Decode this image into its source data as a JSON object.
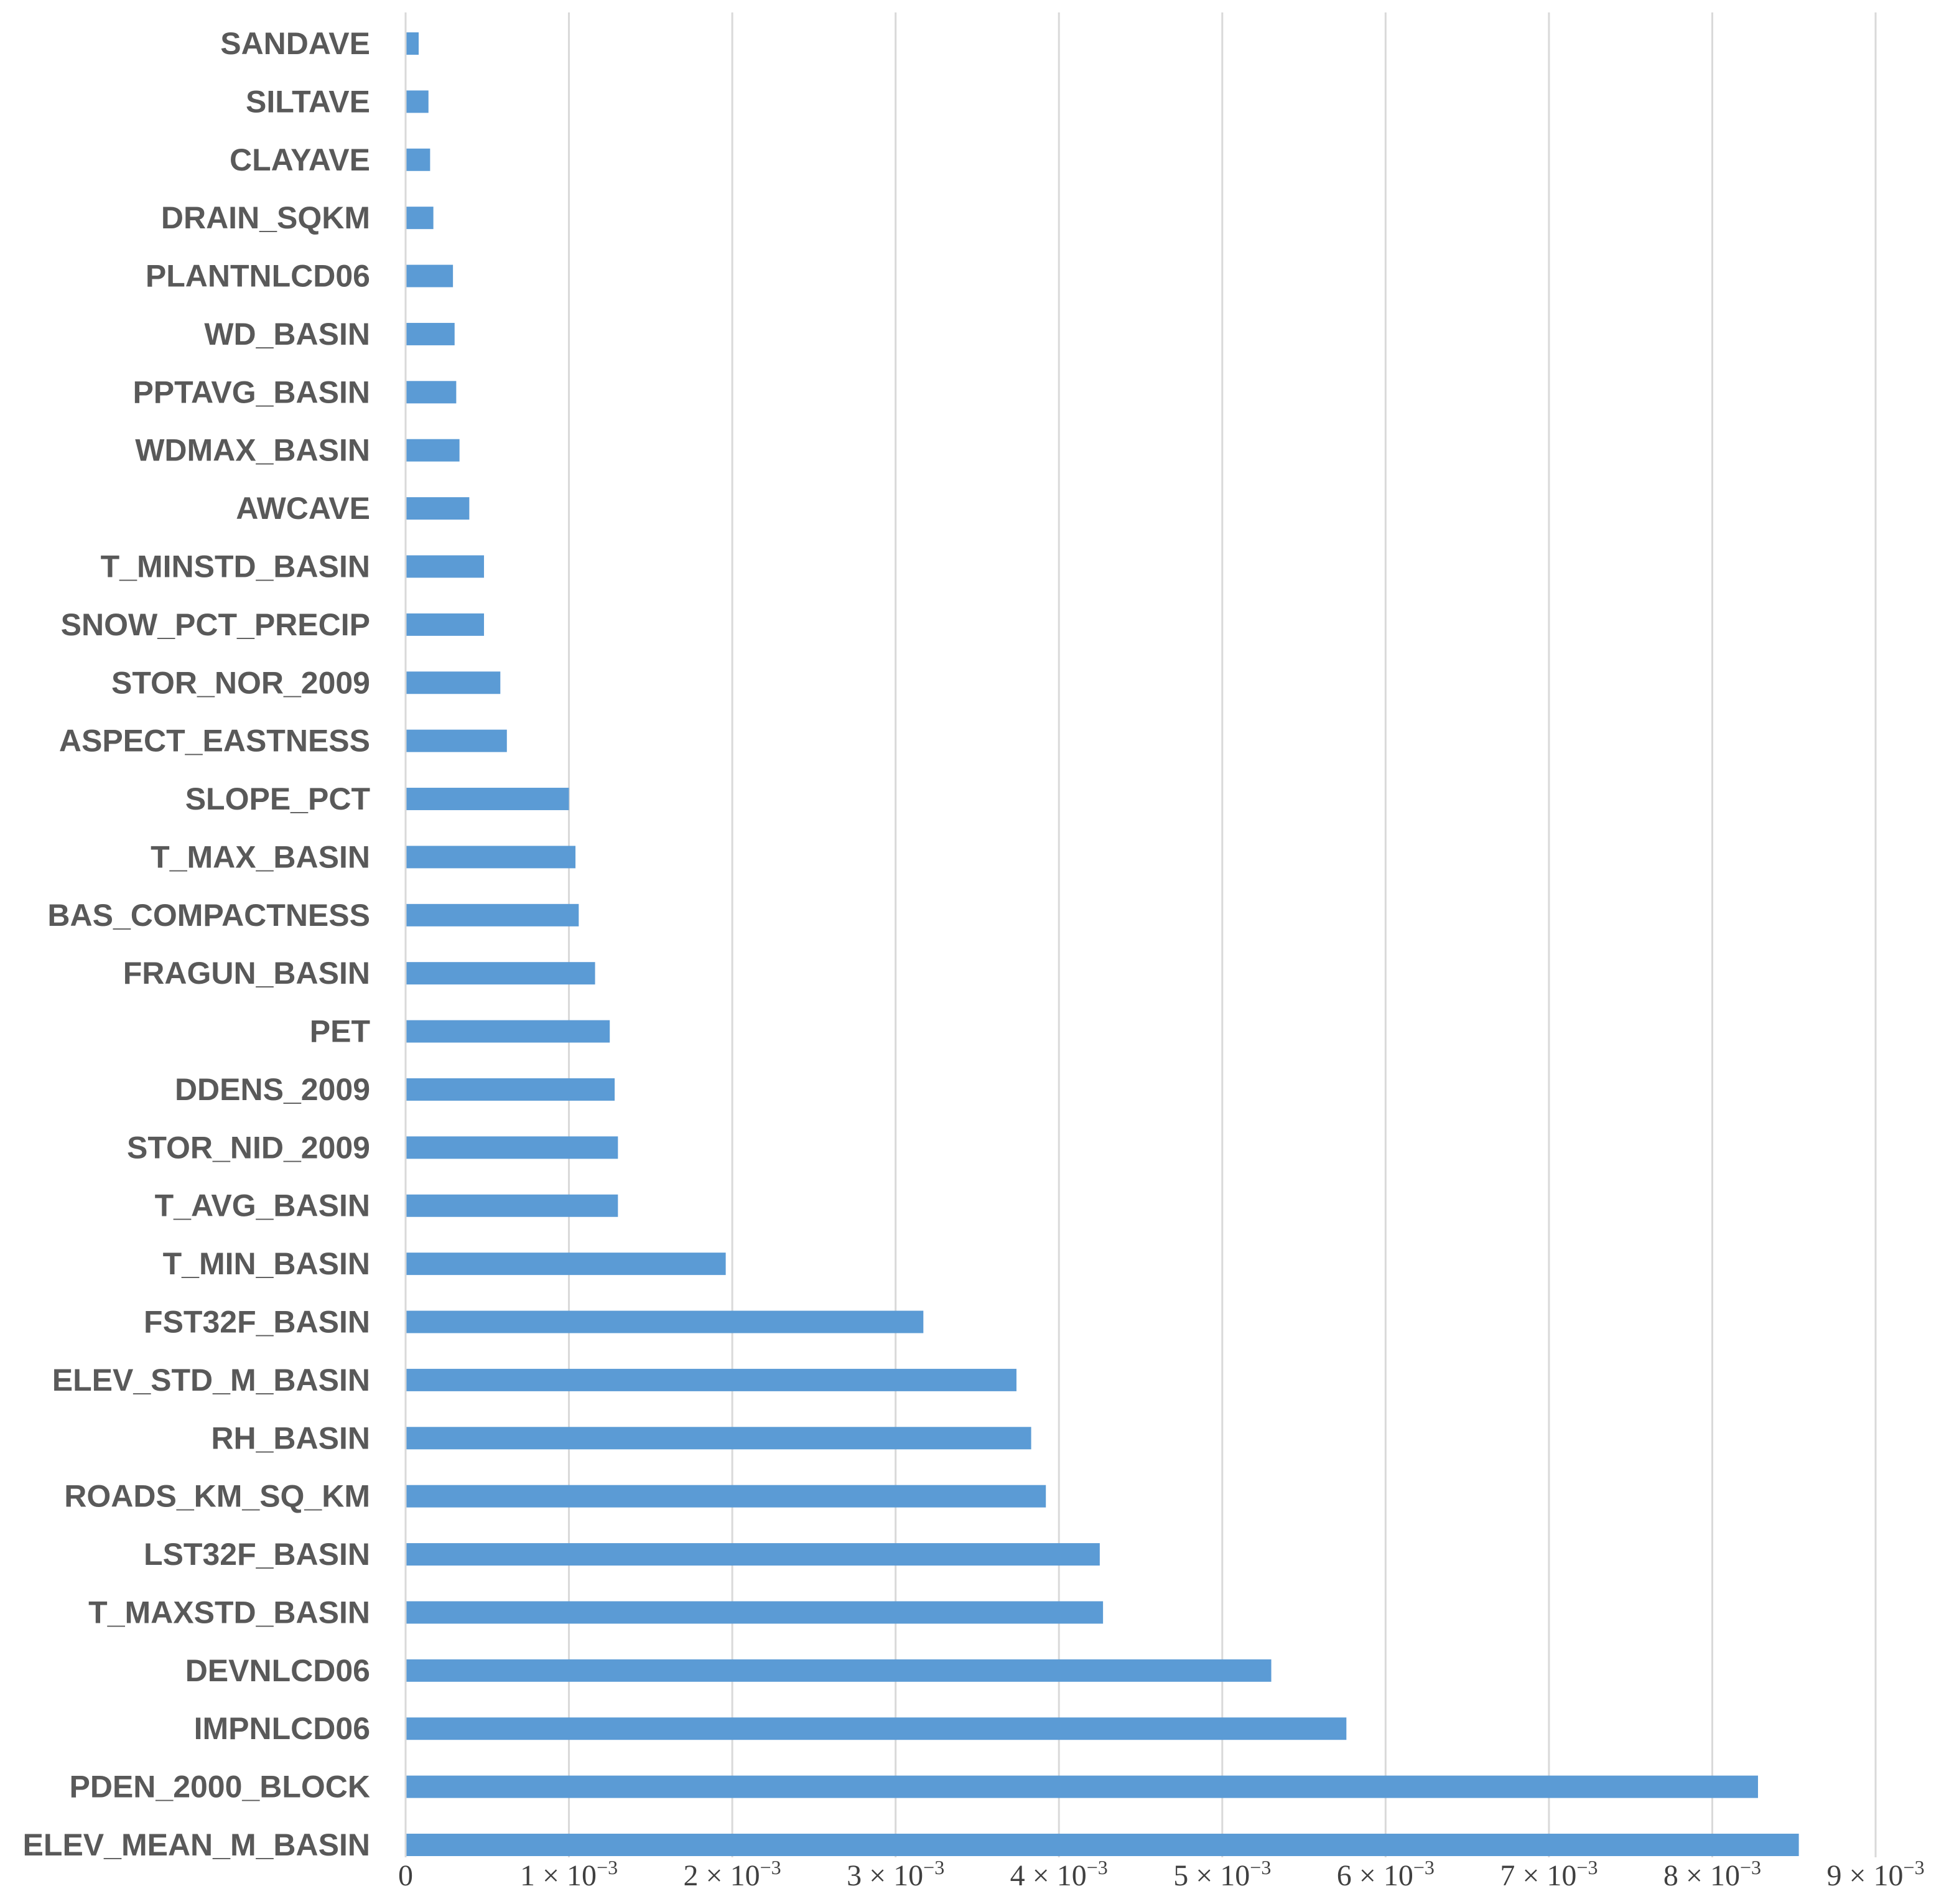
{
  "chart_data": {
    "type": "bar",
    "orientation": "horizontal",
    "categories": [
      "SANDAVE",
      "SILTAVE",
      "CLAYAVE",
      "DRAIN_SQKM",
      "PLANTNLCD06",
      "WD_BASIN",
      "PPTAVG_BASIN",
      "WDMAX_BASIN",
      "AWCAVE",
      "T_MINSTD_BASIN",
      "SNOW_PCT_PRECIP",
      "STOR_NOR_2009",
      "ASPECT_EASTNESS",
      "SLOPE_PCT",
      "T_MAX_BASIN",
      "BAS_COMPACTNESS",
      "FRAGUN_BASIN",
      "PET",
      "DDENS_2009",
      "STOR_NID_2009",
      "T_AVG_BASIN",
      "T_MIN_BASIN",
      "FST32F_BASIN",
      "ELEV_STD_M_BASIN",
      "RH_BASIN",
      "ROADS_KM_SQ_KM",
      "LST32F_BASIN",
      "T_MAXSTD_BASIN",
      "DEVNLCD06",
      "IMPNLCD06",
      "PDEN_2000_BLOCK",
      "ELEV_MEAN_M_BASIN"
    ],
    "values": [
      8e-05,
      0.00014,
      0.00015,
      0.00017,
      0.00029,
      0.0003,
      0.00031,
      0.00033,
      0.00039,
      0.00048,
      0.00048,
      0.00058,
      0.00062,
      0.001,
      0.00104,
      0.00106,
      0.00116,
      0.00125,
      0.00128,
      0.0013,
      0.0013,
      0.00196,
      0.00317,
      0.00374,
      0.00383,
      0.00392,
      0.00425,
      0.00427,
      0.0053,
      0.00576,
      0.00828,
      0.00853
    ],
    "x_ticks": [
      {
        "mantissa": "0",
        "exponent": ""
      },
      {
        "mantissa": "1 × 10",
        "exponent": "−3"
      },
      {
        "mantissa": "2 × 10",
        "exponent": "−3"
      },
      {
        "mantissa": "3 × 10",
        "exponent": "−3"
      },
      {
        "mantissa": "4 × 10",
        "exponent": "−3"
      },
      {
        "mantissa": "5 × 10",
        "exponent": "−3"
      },
      {
        "mantissa": "6 × 10",
        "exponent": "−3"
      },
      {
        "mantissa": "7 × 10",
        "exponent": "−3"
      },
      {
        "mantissa": "8 × 10",
        "exponent": "−3"
      },
      {
        "mantissa": "9 × 10",
        "exponent": "−3"
      }
    ],
    "xlim": [
      0,
      0.009
    ],
    "title": "",
    "xlabel": "",
    "ylabel": "",
    "grid": "vertical",
    "legend": "none",
    "bar_color": "#5b9bd5",
    "grid_color": "#d9d9d9",
    "label_color": "#595959"
  }
}
